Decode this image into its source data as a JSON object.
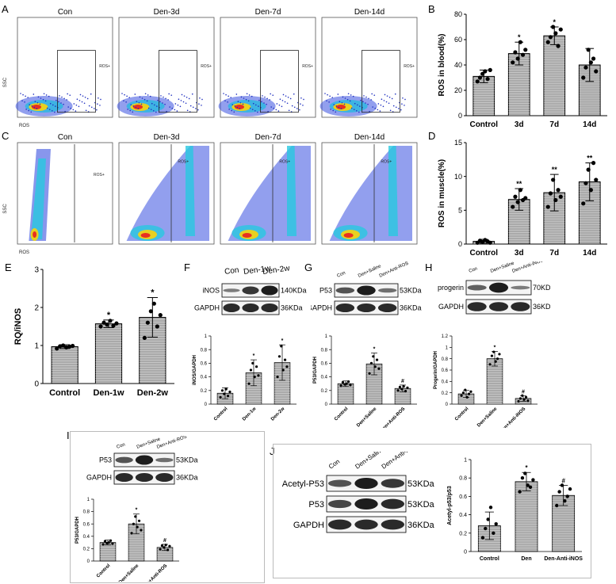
{
  "panels": {
    "A": {
      "letter": "A",
      "gate_label": "ROS+",
      "y_axis": "SSC",
      "x_axis": "ROS",
      "titles": [
        "Con",
        "Den-3d",
        "Den-7d",
        "Den-14d"
      ]
    },
    "B": {
      "letter": "B"
    },
    "C": {
      "letter": "C",
      "gate_label": "ROS+",
      "y_axis": "SSC",
      "x_axis": "ROS",
      "titles": [
        "Con",
        "Den-3d",
        "Den-7d",
        "Den-14d"
      ]
    },
    "D": {
      "letter": "D"
    },
    "E": {
      "letter": "E"
    },
    "F": {
      "letter": "F",
      "lanes": [
        "Con",
        "Den-1w",
        "Den-2w"
      ],
      "bands": [
        {
          "name": "iNOS",
          "kda": "140KDa"
        },
        {
          "name": "GAPDH",
          "kda": "36KDa"
        }
      ]
    },
    "G": {
      "letter": "G",
      "lanes": [
        "Con",
        "Den+Saline",
        "Den+Anti-ROS"
      ],
      "bands": [
        {
          "name": "P53",
          "kda": "53KDa"
        },
        {
          "name": "GAPDH",
          "kda": "36KDa"
        }
      ]
    },
    "H": {
      "letter": "H",
      "lanes": [
        "Con",
        "Den+Saline",
        "Den+Anti-iNOS"
      ],
      "bands": [
        {
          "name": "progerin",
          "kda": "70KDa"
        },
        {
          "name": "GAPDH",
          "kda": "36KDa"
        }
      ]
    },
    "I": {
      "letter": "I",
      "lanes": [
        "Con",
        "Den+Saline",
        "Den+Anti-ROS"
      ],
      "bands": [
        {
          "name": "P53",
          "kda": "53KDa"
        },
        {
          "name": "GAPDH",
          "kda": "36KDa"
        }
      ]
    },
    "J": {
      "letter": "J",
      "lanes": [
        "Con",
        "Den+Saline",
        "Den+Anti-iNOS"
      ],
      "bands": [
        {
          "name": "Acetyl-P53",
          "kda": "53KDa"
        },
        {
          "name": "P53",
          "kda": "53KDa"
        },
        {
          "name": "GAPDH",
          "kda": "36KDa"
        }
      ]
    }
  },
  "chart_data": [
    {
      "id": "B",
      "type": "bar",
      "categories": [
        "Control",
        "3d",
        "7d",
        "14d"
      ],
      "values": [
        31,
        49,
        63,
        40
      ],
      "errors": [
        5,
        9,
        7,
        13
      ],
      "ylabel": "ROS in blood(%)",
      "ylim": [
        0,
        80
      ],
      "ticks": [
        0,
        20,
        40,
        60,
        80
      ],
      "annotations": [
        "",
        "*",
        "*",
        ""
      ],
      "points": [
        [
          27,
          30,
          33,
          35,
          29,
          36
        ],
        [
          42,
          50,
          45,
          58,
          48,
          52
        ],
        [
          58,
          62,
          70,
          65,
          55,
          68
        ],
        [
          30,
          38,
          52,
          42,
          45,
          35
        ]
      ]
    },
    {
      "id": "D",
      "type": "bar",
      "categories": [
        "Control",
        "3d",
        "7d",
        "14d"
      ],
      "values": [
        0.4,
        6.6,
        7.6,
        9.2
      ],
      "errors": [
        0.3,
        1.6,
        2.7,
        2.8
      ],
      "ylabel": "ROS in muscle(%)",
      "ylim": [
        0,
        15
      ],
      "ticks": [
        0,
        5,
        10,
        15
      ],
      "annotations": [
        "",
        "**",
        "**",
        "**"
      ],
      "points": [
        [
          0.2,
          0.5,
          0.3,
          0.6,
          0.4,
          0.2
        ],
        [
          5.5,
          7,
          6.2,
          8,
          6.5,
          6.8
        ],
        [
          5.5,
          7.5,
          9.5,
          6.5,
          8,
          7
        ],
        [
          6,
          9,
          11,
          8,
          12,
          9.5
        ]
      ]
    },
    {
      "id": "E",
      "type": "bar",
      "categories": [
        "Control",
        "Den-1w",
        "Den-2w"
      ],
      "values": [
        0.97,
        1.57,
        1.74
      ],
      "errors": [
        0.05,
        0.1,
        0.52
      ],
      "ylabel": "RQ/iNOS",
      "ylim": [
        0,
        3
      ],
      "ticks": [
        0,
        1,
        2,
        3
      ],
      "annotations": [
        "",
        "*",
        "*"
      ],
      "points": [
        [
          0.92,
          0.98,
          1.0,
          0.95,
          0.97,
          0.99
        ],
        [
          1.5,
          1.6,
          1.55,
          1.65,
          1.52,
          1.58
        ],
        [
          1.2,
          1.6,
          1.9,
          2.1,
          1.5,
          1.8
        ]
      ]
    },
    {
      "id": "F",
      "type": "bar",
      "categories": [
        "Control",
        "Den-1w",
        "Den-2w"
      ],
      "values": [
        0.16,
        0.46,
        0.61
      ],
      "errors": [
        0.08,
        0.19,
        0.26
      ],
      "ylabel": "iNOS/GAPDH",
      "ylim": [
        0,
        1.0
      ],
      "ticks": [
        0,
        0.2,
        0.4,
        0.6,
        0.8,
        1.0
      ],
      "annotations": [
        "",
        "*",
        "*"
      ],
      "points": [
        [
          0.1,
          0.2,
          0.15,
          0.22,
          0.12,
          0.18
        ],
        [
          0.3,
          0.5,
          0.6,
          0.4,
          0.55,
          0.42
        ],
        [
          0.4,
          0.7,
          0.85,
          0.5,
          0.65,
          0.55
        ]
      ]
    },
    {
      "id": "G",
      "type": "bar",
      "categories": [
        "Control",
        "Den+Saline",
        "Den+Anti-ROS"
      ],
      "values": [
        0.3,
        0.59,
        0.23
      ],
      "errors": [
        0.04,
        0.16,
        0.05
      ],
      "ylabel": "P53/GAPDH",
      "ylim": [
        0,
        1.0
      ],
      "ticks": [
        0,
        0.2,
        0.4,
        0.6,
        0.8,
        1.0
      ],
      "annotations": [
        "",
        "*",
        "#"
      ],
      "points": [
        [
          0.27,
          0.32,
          0.29,
          0.3,
          0.33,
          0.28
        ],
        [
          0.45,
          0.6,
          0.7,
          0.55,
          0.65,
          0.52
        ],
        [
          0.2,
          0.25,
          0.22,
          0.26,
          0.19,
          0.24
        ]
      ]
    },
    {
      "id": "H",
      "type": "bar",
      "categories": [
        "Control",
        "Den+Saline",
        "Den+Anti-iNOS"
      ],
      "values": [
        0.18,
        0.8,
        0.1
      ],
      "errors": [
        0.06,
        0.13,
        0.05
      ],
      "ylabel": "Progerin/GAPDH",
      "ylim": [
        0,
        1.2
      ],
      "ticks": [
        0,
        0.2,
        0.4,
        0.6,
        0.8,
        1.0,
        1.2
      ],
      "annotations": [
        "",
        "*",
        "#"
      ],
      "points": [
        [
          0.15,
          0.2,
          0.25,
          0.12,
          0.18,
          0.22
        ],
        [
          0.7,
          0.85,
          0.92,
          0.75,
          0.8,
          0.88
        ],
        [
          0.05,
          0.1,
          0.15,
          0.08,
          0.12,
          0.06
        ]
      ]
    },
    {
      "id": "I",
      "type": "bar",
      "categories": [
        "Control",
        "Den+Saline",
        "Den+Anti-ROS"
      ],
      "values": [
        0.3,
        0.6,
        0.22
      ],
      "errors": [
        0.04,
        0.16,
        0.05
      ],
      "ylabel": "P53/GAPDH",
      "ylim": [
        0,
        1.0
      ],
      "ticks": [
        0,
        0.2,
        0.4,
        0.6,
        0.8,
        1.0
      ],
      "annotations": [
        "",
        "*",
        "#"
      ],
      "points": [
        [
          0.27,
          0.32,
          0.29,
          0.3,
          0.33,
          0.28
        ],
        [
          0.45,
          0.6,
          0.72,
          0.55,
          0.65,
          0.5
        ],
        [
          0.19,
          0.25,
          0.22,
          0.26,
          0.18,
          0.24
        ]
      ]
    },
    {
      "id": "J",
      "type": "bar",
      "categories": [
        "Control",
        "Den",
        "Den-Anti-iNOS"
      ],
      "values": [
        0.28,
        0.76,
        0.61
      ],
      "errors": [
        0.15,
        0.1,
        0.11
      ],
      "ylabel": "Acetyl-p53/p53",
      "ylim": [
        0,
        1.0
      ],
      "ticks": [
        0,
        0.2,
        0.4,
        0.6,
        0.8,
        1.0
      ],
      "annotations": [
        "",
        "*",
        "#"
      ],
      "points": [
        [
          0.15,
          0.25,
          0.35,
          0.48,
          0.2,
          0.3
        ],
        [
          0.65,
          0.8,
          0.85,
          0.72,
          0.7,
          0.78
        ],
        [
          0.5,
          0.65,
          0.72,
          0.55,
          0.6,
          0.68
        ]
      ]
    }
  ]
}
